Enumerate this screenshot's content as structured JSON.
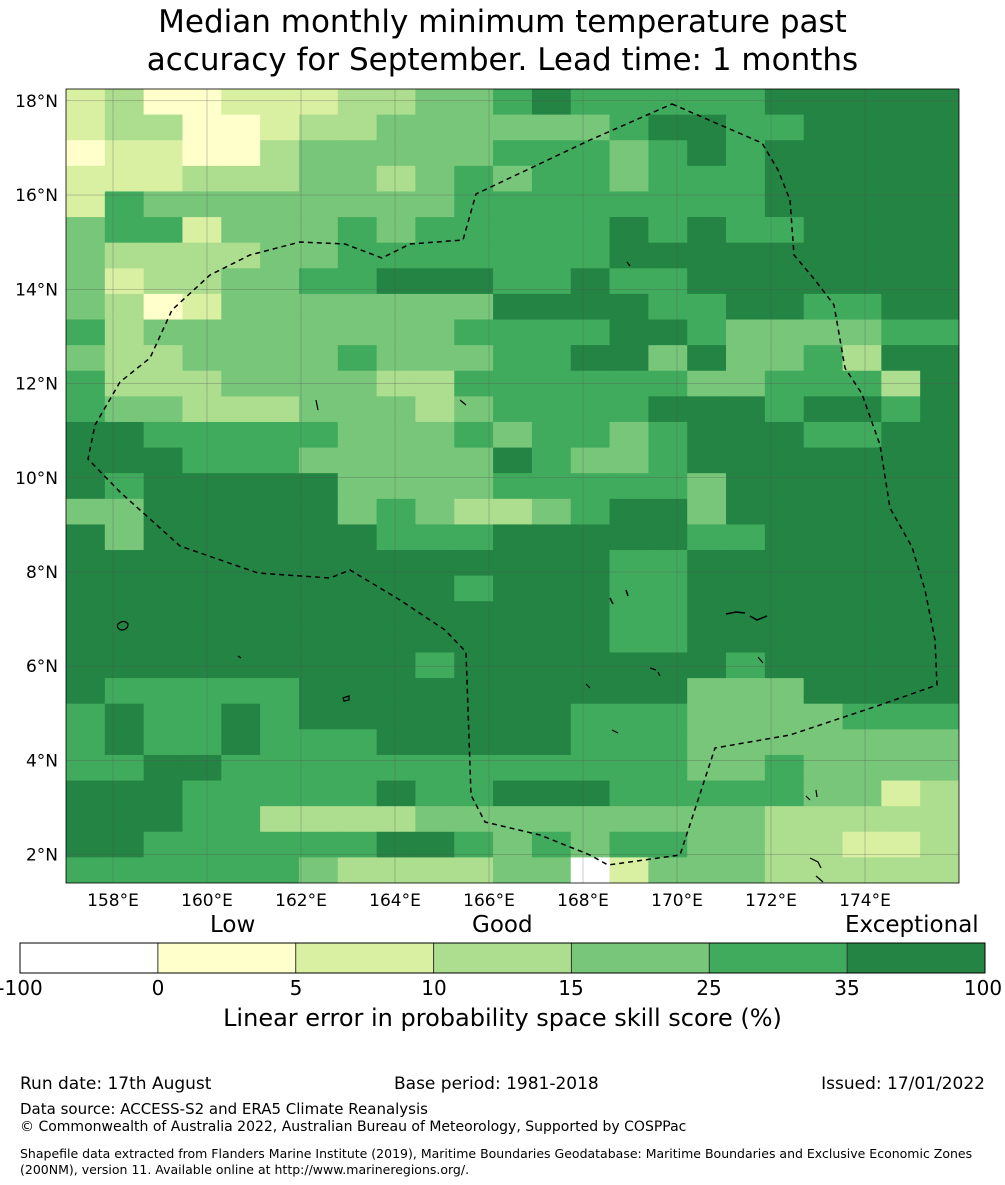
{
  "title": {
    "line1": "Median monthly minimum temperature past",
    "line2": "accuracy for September. Lead time: 1 months"
  },
  "map": {
    "lon_range": [
      157.0,
      176.0
    ],
    "lat_range": [
      1.4,
      18.25
    ],
    "x_ticks": [
      {
        "value": 158,
        "label": "158°E"
      },
      {
        "value": 160,
        "label": "160°E"
      },
      {
        "value": 162,
        "label": "162°E"
      },
      {
        "value": 164,
        "label": "164°E"
      },
      {
        "value": 166,
        "label": "166°E"
      },
      {
        "value": 168,
        "label": "168°E"
      },
      {
        "value": 170,
        "label": "170°E"
      },
      {
        "value": 172,
        "label": "172°E"
      },
      {
        "value": 174,
        "label": "174°E"
      }
    ],
    "y_ticks": [
      {
        "value": 2,
        "label": "2°N"
      },
      {
        "value": 4,
        "label": "4°N"
      },
      {
        "value": 6,
        "label": "6°N"
      },
      {
        "value": 8,
        "label": "8°N"
      },
      {
        "value": 10,
        "label": "10°N"
      },
      {
        "value": 12,
        "label": "12°N"
      },
      {
        "value": 14,
        "label": "14°N"
      },
      {
        "value": 16,
        "label": "16°N"
      },
      {
        "value": 18,
        "label": "18°N"
      }
    ],
    "gridlines": true,
    "grid_cols": 23,
    "grid_rows": 31,
    "cell_classes_legend": "0=below 0,1=0-5,2=5-10,3=10-15,4=15-25,5=25-35,6=35-100",
    "cells": [
      "23112223344565555566666",
      "23311233444444566556666",
      "12211344444555456566666",
      "22233344345455455566666",
      "25444444445555555566666",
      "45524445455555656556666",
      "43333445555555666666666",
      "42334455666556556666666",
      "43124444444666655665566",
      "53444444445555665444455",
      "43344445444556646445366",
      "53334444335555554455536",
      "54433344434555566656656",
      "66555554445455456665566",
      "66655544444654456666666",
      "65666664444555554666666",
      "44666664543345664666666",
      "64666666555666665566666",
      "66666666666666556666666",
      "66666666665666556666666",
      "66666666666666556666666",
      "66666666666666556666666",
      "66666666656666666566666",
      "65555566666666664446666",
      "56556566666665554444555",
      "56556555666665554444444",
      "55665555555555554454444",
      "66655555655666555554423",
      "66655333344444444433333",
      "66555555665454554433223",
      "55555543333440244433333"
    ],
    "eez_boundary": "dashed"
  },
  "colorbar": {
    "words": {
      "low": "Low",
      "good": "Good",
      "exceptional": "Exceptional"
    },
    "ticks": [
      "-100",
      "0",
      "5",
      "10",
      "15",
      "25",
      "35",
      "100"
    ],
    "colors": [
      "#ffffff",
      "#ffffcc",
      "#d9f0a3",
      "#addd8e",
      "#78c679",
      "#41ab5d",
      "#238443"
    ],
    "title": "Linear error in probability space skill score (%)"
  },
  "footer": {
    "run_date": "Run date: 17th August",
    "base_period": "Base period: 1981-2018",
    "issued": "Issued: 17/01/2022",
    "data_source": "Data source: ACCESS-S2 and ERA5 Climate Reanalysis",
    "copyright": "© Commonwealth of Australia 2022, Australian Bureau of Meteorology, Supported by COSPPac",
    "shapefile": "Shapefile data extracted from Flanders Marine Institute (2019), Maritime Boundaries Geodatabase: Maritime Boundaries and Exclusive Economic Zones (200NM), version 11. Available online at http://www.marineregions.org/."
  }
}
